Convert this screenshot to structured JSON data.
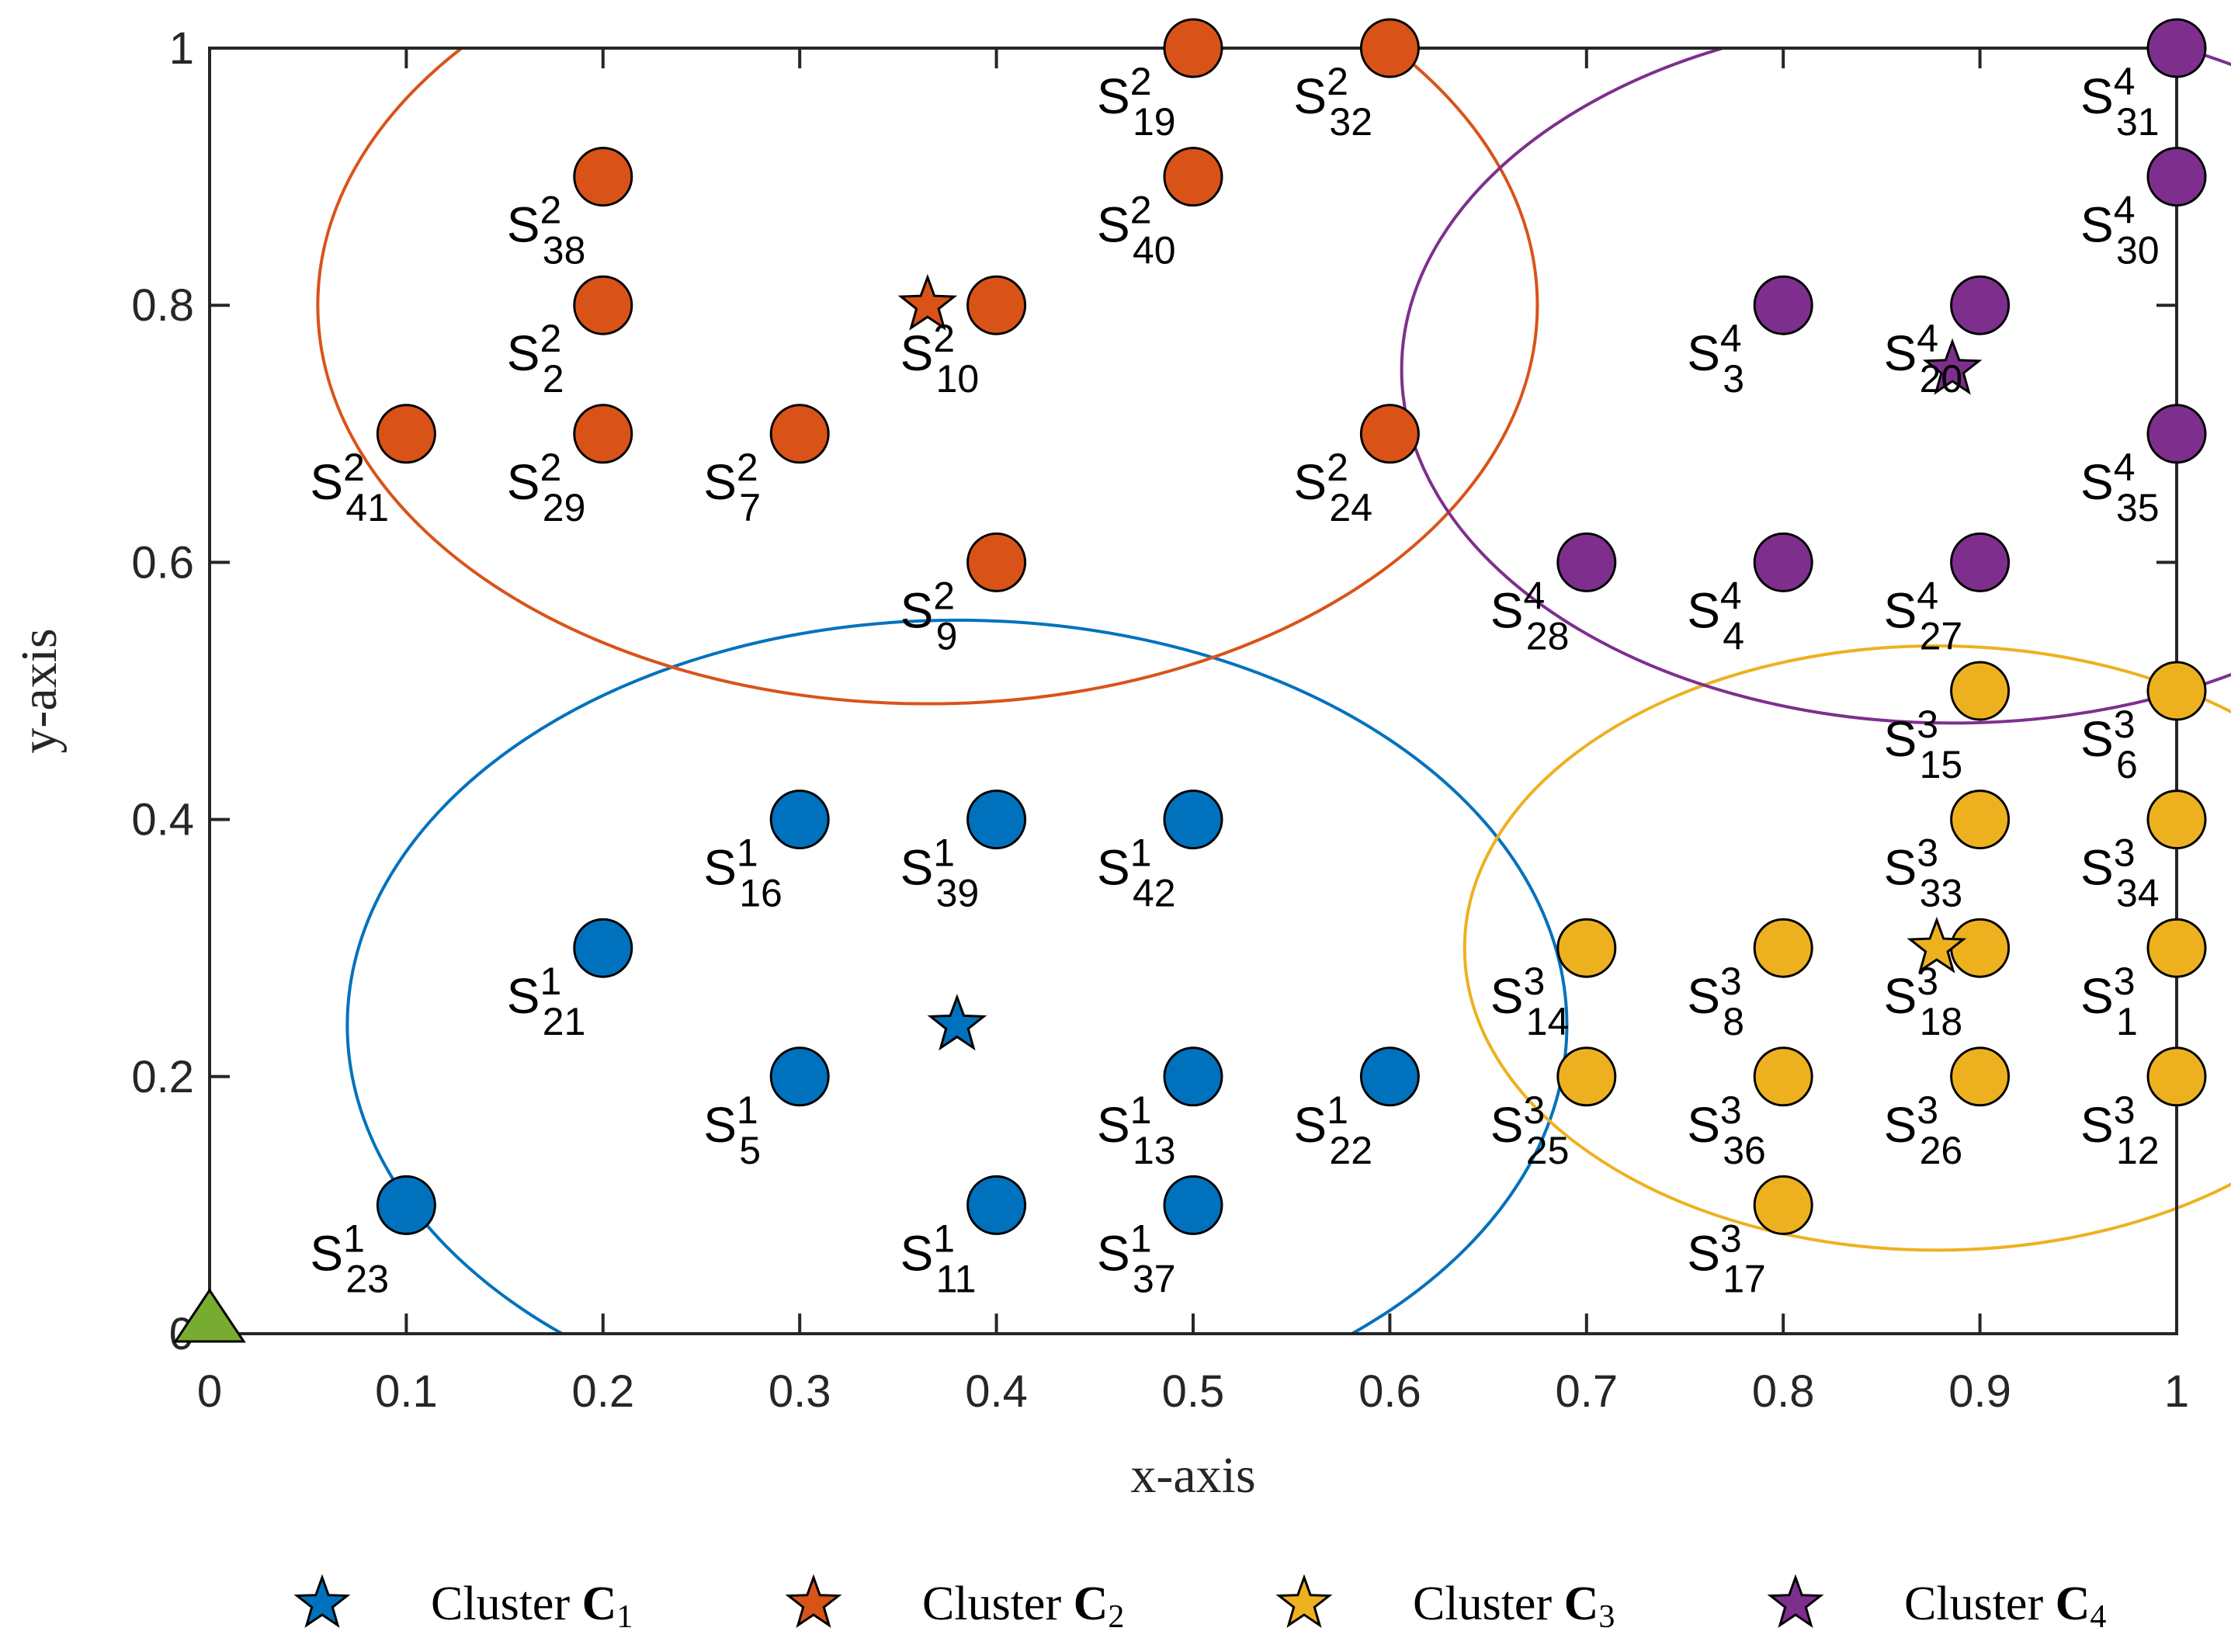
{
  "chart_data": {
    "type": "scatter",
    "xlabel": "x-axis",
    "ylabel": "y-axis",
    "xlim": [
      0,
      1
    ],
    "ylim": [
      0,
      1
    ],
    "xticks": [
      "0",
      "0.1",
      "0.2",
      "0.3",
      "0.4",
      "0.5",
      "0.6",
      "0.7",
      "0.8",
      "0.9",
      "1"
    ],
    "yticks": [
      "0",
      "0.2",
      "0.4",
      "0.6",
      "0.8",
      "1"
    ],
    "grid": false,
    "base_station": {
      "x": 0,
      "y": 0,
      "color": "#77ac30",
      "shape": "triangle"
    },
    "series": [
      {
        "name": "Cluster C1",
        "legend_prefix": "Cluster ",
        "legend_symbol": "C",
        "legend_sub": "1",
        "color": "#0072bd",
        "center": {
          "x": 0.38,
          "y": 0.24
        },
        "ellipse": {
          "cx": 0.38,
          "cy": 0.24,
          "rx": 0.31,
          "ry": 0.315
        },
        "points": [
          {
            "x": 0.3,
            "y": 0.4,
            "sup": "1",
            "sub": "16"
          },
          {
            "x": 0.4,
            "y": 0.4,
            "sup": "1",
            "sub": "39"
          },
          {
            "x": 0.5,
            "y": 0.4,
            "sup": "1",
            "sub": "42"
          },
          {
            "x": 0.2,
            "y": 0.3,
            "sup": "1",
            "sub": "21"
          },
          {
            "x": 0.3,
            "y": 0.2,
            "sup": "1",
            "sub": "5"
          },
          {
            "x": 0.5,
            "y": 0.2,
            "sup": "1",
            "sub": "13"
          },
          {
            "x": 0.6,
            "y": 0.2,
            "sup": "1",
            "sub": "22"
          },
          {
            "x": 0.1,
            "y": 0.1,
            "sup": "1",
            "sub": "23"
          },
          {
            "x": 0.4,
            "y": 0.1,
            "sup": "1",
            "sub": "11"
          },
          {
            "x": 0.5,
            "y": 0.1,
            "sup": "1",
            "sub": "37"
          }
        ]
      },
      {
        "name": "Cluster C2",
        "legend_prefix": "Cluster ",
        "legend_symbol": "C",
        "legend_sub": "2",
        "color": "#d95319",
        "center": {
          "x": 0.365,
          "y": 0.8
        },
        "ellipse": {
          "cx": 0.365,
          "cy": 0.8,
          "rx": 0.31,
          "ry": 0.31
        },
        "points": [
          {
            "x": 0.5,
            "y": 1.0,
            "sup": "2",
            "sub": "19"
          },
          {
            "x": 0.6,
            "y": 1.0,
            "sup": "2",
            "sub": "32"
          },
          {
            "x": 0.2,
            "y": 0.9,
            "sup": "2",
            "sub": "38"
          },
          {
            "x": 0.5,
            "y": 0.9,
            "sup": "2",
            "sub": "40"
          },
          {
            "x": 0.2,
            "y": 0.8,
            "sup": "2",
            "sub": "2"
          },
          {
            "x": 0.4,
            "y": 0.8,
            "sup": "2",
            "sub": "10"
          },
          {
            "x": 0.1,
            "y": 0.7,
            "sup": "2",
            "sub": "41"
          },
          {
            "x": 0.2,
            "y": 0.7,
            "sup": "2",
            "sub": "29"
          },
          {
            "x": 0.3,
            "y": 0.7,
            "sup": "2",
            "sub": "7"
          },
          {
            "x": 0.6,
            "y": 0.7,
            "sup": "2",
            "sub": "24"
          },
          {
            "x": 0.4,
            "y": 0.6,
            "sup": "2",
            "sub": "9"
          }
        ]
      },
      {
        "name": "Cluster C3",
        "legend_prefix": "Cluster ",
        "legend_symbol": "C",
        "legend_sub": "3",
        "color": "#edb120",
        "center": {
          "x": 0.878,
          "y": 0.3
        },
        "ellipse": {
          "cx": 0.878,
          "cy": 0.3,
          "rx": 0.24,
          "ry": 0.235
        },
        "points": [
          {
            "x": 0.9,
            "y": 0.5,
            "sup": "3",
            "sub": "15"
          },
          {
            "x": 1.0,
            "y": 0.5,
            "sup": "3",
            "sub": "6"
          },
          {
            "x": 0.9,
            "y": 0.4,
            "sup": "3",
            "sub": "33"
          },
          {
            "x": 1.0,
            "y": 0.4,
            "sup": "3",
            "sub": "34"
          },
          {
            "x": 0.7,
            "y": 0.3,
            "sup": "3",
            "sub": "14"
          },
          {
            "x": 0.8,
            "y": 0.3,
            "sup": "3",
            "sub": "8"
          },
          {
            "x": 0.9,
            "y": 0.3,
            "sup": "3",
            "sub": "18"
          },
          {
            "x": 1.0,
            "y": 0.3,
            "sup": "3",
            "sub": "1"
          },
          {
            "x": 0.7,
            "y": 0.2,
            "sup": "3",
            "sub": "25"
          },
          {
            "x": 0.8,
            "y": 0.2,
            "sup": "3",
            "sub": "36"
          },
          {
            "x": 0.9,
            "y": 0.2,
            "sup": "3",
            "sub": "26"
          },
          {
            "x": 1.0,
            "y": 0.2,
            "sup": "3",
            "sub": "12"
          },
          {
            "x": 0.8,
            "y": 0.1,
            "sup": "3",
            "sub": "17"
          }
        ]
      },
      {
        "name": "Cluster C4",
        "legend_prefix": "Cluster ",
        "legend_symbol": "C",
        "legend_sub": "4",
        "color": "#7e2f8e",
        "center": {
          "x": 0.886,
          "y": 0.75
        },
        "ellipse": {
          "cx": 0.886,
          "cy": 0.75,
          "rx": 0.28,
          "ry": 0.275
        },
        "points": [
          {
            "x": 1.0,
            "y": 1.0,
            "sup": "4",
            "sub": "31"
          },
          {
            "x": 1.0,
            "y": 0.9,
            "sup": "4",
            "sub": "30"
          },
          {
            "x": 0.8,
            "y": 0.8,
            "sup": "4",
            "sub": "3"
          },
          {
            "x": 0.9,
            "y": 0.8,
            "sup": "4",
            "sub": "20"
          },
          {
            "x": 1.0,
            "y": 0.7,
            "sup": "4",
            "sub": "35"
          },
          {
            "x": 0.7,
            "y": 0.6,
            "sup": "4",
            "sub": "28"
          },
          {
            "x": 0.8,
            "y": 0.6,
            "sup": "4",
            "sub": "4"
          },
          {
            "x": 0.9,
            "y": 0.6,
            "sup": "4",
            "sub": "27"
          }
        ]
      }
    ],
    "label_base": "S",
    "legend": {
      "placement": "bottom",
      "orientation": "horizontal"
    }
  }
}
